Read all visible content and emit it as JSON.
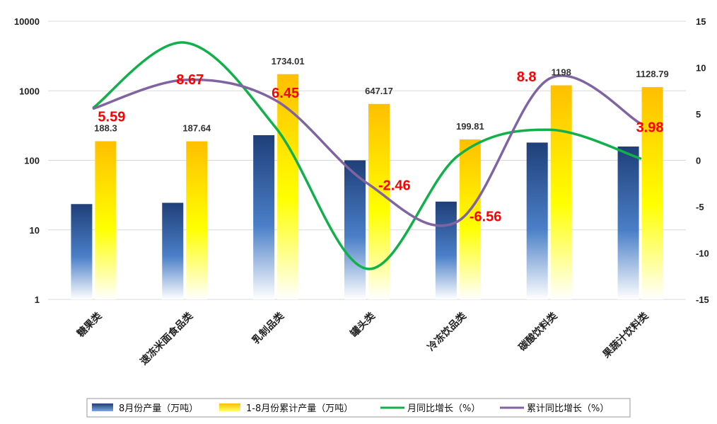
{
  "chart_data": {
    "type": "bar",
    "title": "",
    "categories": [
      "糖果类",
      "速冻米面食品类",
      "乳制品类",
      "罐头类",
      "冷冻饮品类",
      "碳酸饮料类",
      "果蔬汁饮料类"
    ],
    "y_left": {
      "scale": "log",
      "range": [
        1,
        10000
      ],
      "ticks": [
        "1",
        "10",
        "100",
        "1000",
        "10000"
      ]
    },
    "y_right": {
      "range": [
        -15,
        15
      ],
      "ticks": [
        "15",
        "10",
        "5",
        "0",
        "-5",
        "-10",
        "-15"
      ]
    },
    "grid": true,
    "legend_position": "bottom",
    "series": [
      {
        "name": "8月份产量（万吨）",
        "type": "bar",
        "axis": "left",
        "color": "#1f4e8c",
        "values": [
          23.5,
          24.5,
          230,
          100,
          25.5,
          180,
          158
        ]
      },
      {
        "name": "1-8月份累计产量（万吨）",
        "type": "bar",
        "axis": "left",
        "color": "#ffc000",
        "values": [
          188.3,
          187.64,
          1734.01,
          647.17,
          199.81,
          1198,
          1128.79
        ],
        "labels": [
          "188.3",
          "187.64",
          "1734.01",
          "647.17",
          "199.81",
          "1198",
          "1128.79"
        ]
      },
      {
        "name": "月同比增长（%）",
        "type": "line",
        "axis": "right",
        "color": "#11b04b",
        "values": [
          5.7,
          12.7,
          3.5,
          -11.7,
          0.5,
          3.3,
          0.2
        ]
      },
      {
        "name": "累计同比增长（%）",
        "type": "line",
        "axis": "right",
        "color": "#8064a2",
        "values": [
          5.59,
          8.67,
          6.45,
          -2.46,
          -6.56,
          8.8,
          3.98
        ],
        "labels": [
          "5.59",
          "8.67",
          "6.45",
          "-2.46",
          "-6.56",
          "8.8",
          "3.98"
        ]
      }
    ]
  }
}
